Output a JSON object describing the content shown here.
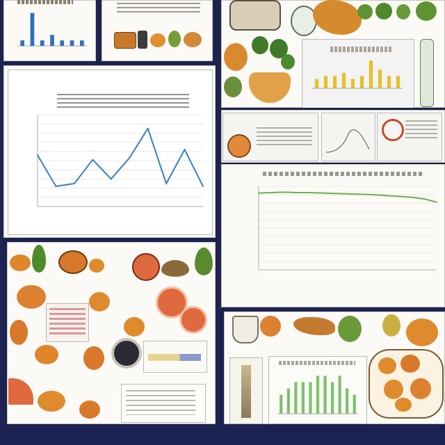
{
  "footer": {
    "text": ""
  },
  "main_line_chart": {
    "title_line1": "",
    "title_line2": "",
    "xlabel": ""
  },
  "right_line_chart": {
    "title": "",
    "xlabel": ""
  },
  "chart_data": [
    {
      "type": "line",
      "title": "",
      "x": [
        1,
        2,
        3,
        4,
        5,
        6,
        7,
        8,
        9,
        10
      ],
      "series": [
        {
          "values": [
            5.6,
            2.2,
            2.5,
            5.1,
            3.0,
            5.3,
            8.5,
            2.5,
            6.2,
            2.2
          ]
        }
      ],
      "ylim": [
        0,
        10
      ],
      "grid": true
    },
    {
      "type": "line",
      "title": "",
      "x": [
        1,
        2,
        3,
        4,
        5,
        6,
        7,
        8,
        9,
        10,
        11,
        12,
        13,
        14,
        15
      ],
      "series": [
        {
          "values": [
            0.92,
            0.925,
            0.93,
            0.925,
            0.925,
            0.92,
            0.915,
            0.91,
            0.905,
            0.9,
            0.89,
            0.88,
            0.87,
            0.85,
            0.81
          ]
        }
      ],
      "ylim": [
        0,
        1
      ],
      "grid": true
    },
    {
      "type": "bar",
      "title": "",
      "categories": [
        "a",
        "b",
        "c",
        "d",
        "e",
        "f",
        "g"
      ],
      "values": [
        1,
        6,
        1,
        2,
        1,
        1,
        1
      ]
    },
    {
      "type": "bar",
      "title": "",
      "categories": [
        "a",
        "b",
        "c",
        "d",
        "e",
        "f",
        "g",
        "h",
        "i",
        "j"
      ],
      "values": [
        1.5,
        2,
        2,
        2.5,
        1.5,
        2,
        4.5,
        3,
        2,
        2
      ]
    },
    {
      "type": "bar",
      "title": "",
      "categories": [
        "a",
        "b",
        "c",
        "d",
        "e",
        "f",
        "g",
        "h",
        "i",
        "j",
        "k"
      ],
      "values": [
        3,
        4,
        5,
        5,
        5,
        6,
        6,
        5,
        6,
        4,
        3
      ]
    }
  ],
  "colors": {
    "background": "#1d2350",
    "panel": "#fbfaf6",
    "line_blue": "#3b7fc1",
    "line_green": "#6ab04c",
    "bar_blue": "#2f6fc0",
    "bar_yellow": "#e5c02a",
    "bar_green": "#7fc06a",
    "fruit_orange": "#e0862a",
    "leaf_green": "#3f7a2a"
  }
}
